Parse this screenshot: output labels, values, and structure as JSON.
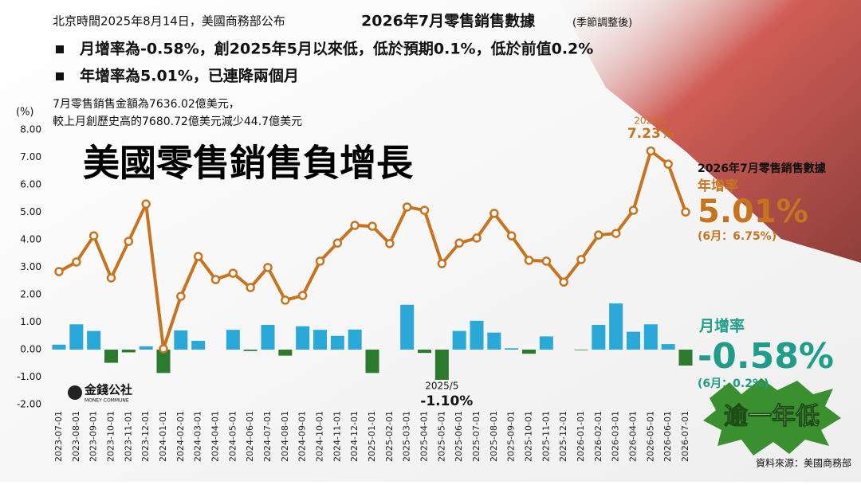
{
  "chart_data": {
    "type": "line_bar",
    "header": {
      "prefix": "北京時間2025年8月14日，美國商務部公布",
      "title": "2026年7月零售銷售數據",
      "suffix": "(季節調整後)"
    },
    "bullets": [
      "月增率為-0.58%，創2025年5月以來低，低於預期0.1%，低於前值0.2%",
      "年增率為5.01%，已連降兩個月"
    ],
    "subtext": [
      "7月零售銷售金額為7636.02億美元，",
      "較上月創歷史高的7680.72億美元減少44.7億美元"
    ],
    "title": "美國零售銷售負增長",
    "y_unit": "(%)",
    "categories": [
      "2023-07-01",
      "2023-08-01",
      "2023-09-01",
      "2023-10-01",
      "2023-11-01",
      "2023-12-01",
      "2024-01-01",
      "2024-02-01",
      "2024-03-01",
      "2024-04-01",
      "2024-05-01",
      "2024-06-01",
      "2024-07-01",
      "2024-08-01",
      "2024-09-01",
      "2024-10-01",
      "2024-11-01",
      "2024-12-01",
      "2025-01-01",
      "2025-02-01",
      "2025-03-01",
      "2025-04-01",
      "2025-05-01",
      "2025-06-01",
      "2025-07-01",
      "2025-08-01",
      "2025-09-01",
      "2025-10-01",
      "2025-11-01",
      "2025-12-01",
      "2026-01-01",
      "2026-02-01",
      "2026-03-01",
      "2026-04-01",
      "2026-05-01",
      "2026-06-01",
      "2026-07-01"
    ],
    "series": [
      {
        "type": "bar",
        "color": "#2aa8d8",
        "negative_color": "#2b7a2e",
        "values": [
          0.18,
          0.92,
          0.68,
          -0.48,
          -0.1,
          0.12,
          -0.85,
          0.7,
          0.32,
          0.0,
          0.72,
          -0.05,
          0.9,
          -0.22,
          0.85,
          0.72,
          0.5,
          0.73,
          -0.85,
          0.0,
          1.63,
          -0.12,
          -1.1,
          0.68,
          1.05,
          0.62,
          0.05,
          -0.15,
          0.48,
          0.0,
          -0.02,
          0.9,
          1.68,
          0.65,
          0.92,
          0.2,
          -0.58
        ]
      },
      {
        "type": "line",
        "color": "#c8741e",
        "values": [
          2.84,
          3.19,
          4.14,
          2.61,
          3.94,
          5.3,
          0.03,
          1.94,
          3.39,
          2.55,
          2.78,
          2.26,
          2.99,
          1.8,
          1.97,
          3.22,
          3.88,
          4.52,
          4.49,
          3.86,
          5.19,
          5.07,
          3.13,
          3.88,
          4.06,
          4.96,
          4.14,
          3.25,
          3.22,
          2.46,
          3.28,
          4.17,
          4.23,
          5.07,
          7.23,
          6.75,
          5.01
        ]
      }
    ],
    "annotations": [
      "2026/5",
      "7.23%",
      "2025/5",
      "-1.10%"
    ],
    "ylim": [
      -2,
      8
    ],
    "yticks": [
      {
        "value": -2,
        "label": "-2.00"
      },
      {
        "value": -1,
        "label": "-1.00"
      },
      {
        "value": 0,
        "label": "0.00"
      },
      {
        "value": 1,
        "label": "1.00"
      },
      {
        "value": 2,
        "label": "2.00"
      },
      {
        "value": 3,
        "label": "3.00"
      },
      {
        "value": 4,
        "label": "4.00"
      },
      {
        "value": 5,
        "label": "5.00"
      },
      {
        "value": 6,
        "label": "6.00"
      },
      {
        "value": 7,
        "label": "7.00"
      },
      {
        "value": 8,
        "label": "8.00"
      }
    ],
    "panel": {
      "title": "2026年7月零售銷售數據",
      "yoy_label": "年增率",
      "yoy_value": "5.01%",
      "yoy_prev": "(6月：6.75%)",
      "mom_label": "月增率",
      "mom_value": "-0.58%",
      "mom_prev": "(6月：0.2%)"
    },
    "badge": "逾一年低",
    "logo": [
      "金錢公社",
      "MONEY COMMUNE"
    ],
    "source": "資料來源：美國商務部"
  }
}
